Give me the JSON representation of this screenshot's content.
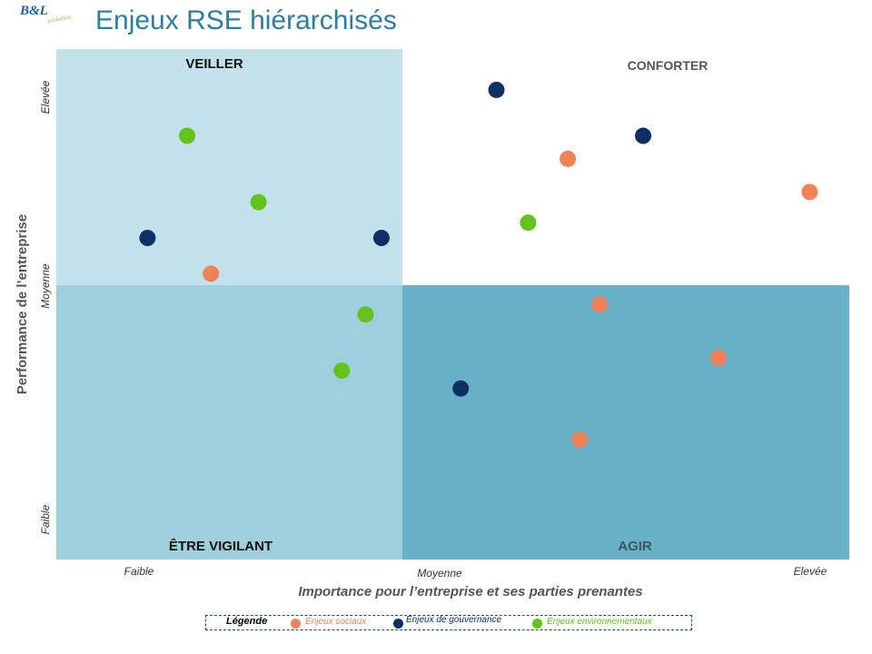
{
  "logo": {
    "mark": "B&L",
    "sub": "évolution"
  },
  "title": "Enjeux RSE hiérarchisés",
  "colors": {
    "veiller_bg": "#c3e1ea",
    "confronter_bg": "#ffffff",
    "vigilant_bg": "#9dcfdc",
    "agir_bg": "#67b2c8",
    "social": "#ef8257",
    "gouvernance": "#0d2f63",
    "environnement": "#63c21c",
    "title": "#2b7fa3"
  },
  "chart_data": {
    "type": "scatter",
    "xlabel": "Importance pour l’entreprise et ses parties prenantes",
    "ylabel": "Performance de l’entreprise",
    "x_ticks": [
      "Faible",
      "Moyenne",
      "Elevée"
    ],
    "y_ticks": [
      "Faible",
      "Moyenne",
      "Elevée"
    ],
    "xlim": [
      0,
      10
    ],
    "ylim": [
      0,
      10
    ],
    "grid": false,
    "quadrants": {
      "top_left": "VEILLER",
      "top_right": "CONFORTER",
      "bottom_left": "ÊTRE VIGILANT",
      "bottom_right": "AGIR"
    },
    "series": [
      {
        "name": "Enjeux sociaux",
        "key": "social",
        "points": [
          [
            1.95,
            5.6
          ],
          [
            6.45,
            7.85
          ],
          [
            6.85,
            5.0
          ],
          [
            8.35,
            3.95
          ],
          [
            6.6,
            2.35
          ],
          [
            9.5,
            7.2
          ]
        ]
      },
      {
        "name": "Enjeux de gouvernance",
        "key": "gouvernance",
        "points": [
          [
            1.15,
            6.3
          ],
          [
            4.1,
            6.3
          ],
          [
            5.55,
            9.2
          ],
          [
            7.4,
            8.3
          ],
          [
            5.1,
            3.35
          ]
        ]
      },
      {
        "name": "Enjeux environnementaux",
        "key": "environnement",
        "points": [
          [
            1.65,
            8.3
          ],
          [
            2.55,
            7.0
          ],
          [
            3.9,
            4.8
          ],
          [
            3.6,
            3.7
          ],
          [
            5.95,
            6.6
          ]
        ]
      }
    ]
  },
  "legend": {
    "title": "Légende",
    "items": [
      {
        "label": "Enjeux sociaux",
        "key": "social"
      },
      {
        "label": "Enjeux de gouvernance",
        "key": "gouvernance"
      },
      {
        "label": "Enjeux environnementaux",
        "key": "environnement"
      }
    ]
  }
}
